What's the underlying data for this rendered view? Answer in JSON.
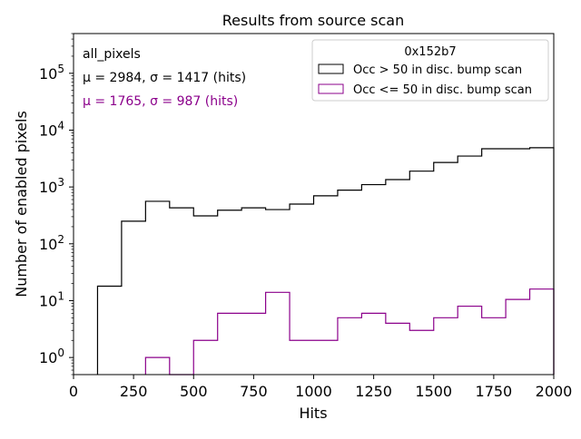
{
  "chart_data": {
    "type": "histogram",
    "title": "Results from source scan",
    "xlabel": "Hits",
    "ylabel": "Number of enabled pixels",
    "yscale": "log",
    "xlim": [
      0,
      2000
    ],
    "ylim": [
      0.5,
      500000
    ],
    "x_ticks": [
      "0",
      "250",
      "500",
      "750",
      "1000",
      "1250",
      "1500",
      "1750",
      "2000"
    ],
    "x_tick_values": [
      0,
      250,
      500,
      750,
      1000,
      1250,
      1500,
      1750,
      2000
    ],
    "y_tick_exponents": [
      0,
      1,
      2,
      3,
      4,
      5
    ],
    "y_tick_base": "10",
    "bin_edges": [
      0,
      100,
      200,
      300,
      400,
      500,
      600,
      700,
      800,
      900,
      1000,
      1100,
      1200,
      1300,
      1400,
      1500,
      1600,
      1700,
      1800,
      1900,
      2000
    ],
    "annotations": {
      "dataset": "all_pixels",
      "stats_black": "μ = 2984, σ = 1417 (hits)",
      "stats_purple": "μ = 1765, σ = 987 (hits)"
    },
    "legend": {
      "title": "0x152b7",
      "placement": "top-right"
    },
    "series": [
      {
        "name": "Occ > 50 in disc. bump scan",
        "color": "#000000",
        "values": [
          0,
          18,
          250,
          560,
          430,
          310,
          390,
          430,
          400,
          500,
          700,
          880,
          1100,
          1350,
          1900,
          2700,
          3500,
          4700,
          4700,
          4900
        ]
      },
      {
        "name": "Occ <= 50 in disc. bump scan",
        "color": "#8b008b",
        "values": [
          0,
          0,
          0,
          1,
          0,
          2,
          6,
          6,
          14,
          2,
          2,
          5,
          6,
          4,
          3,
          5,
          8,
          5,
          10.5,
          16
        ]
      }
    ]
  }
}
